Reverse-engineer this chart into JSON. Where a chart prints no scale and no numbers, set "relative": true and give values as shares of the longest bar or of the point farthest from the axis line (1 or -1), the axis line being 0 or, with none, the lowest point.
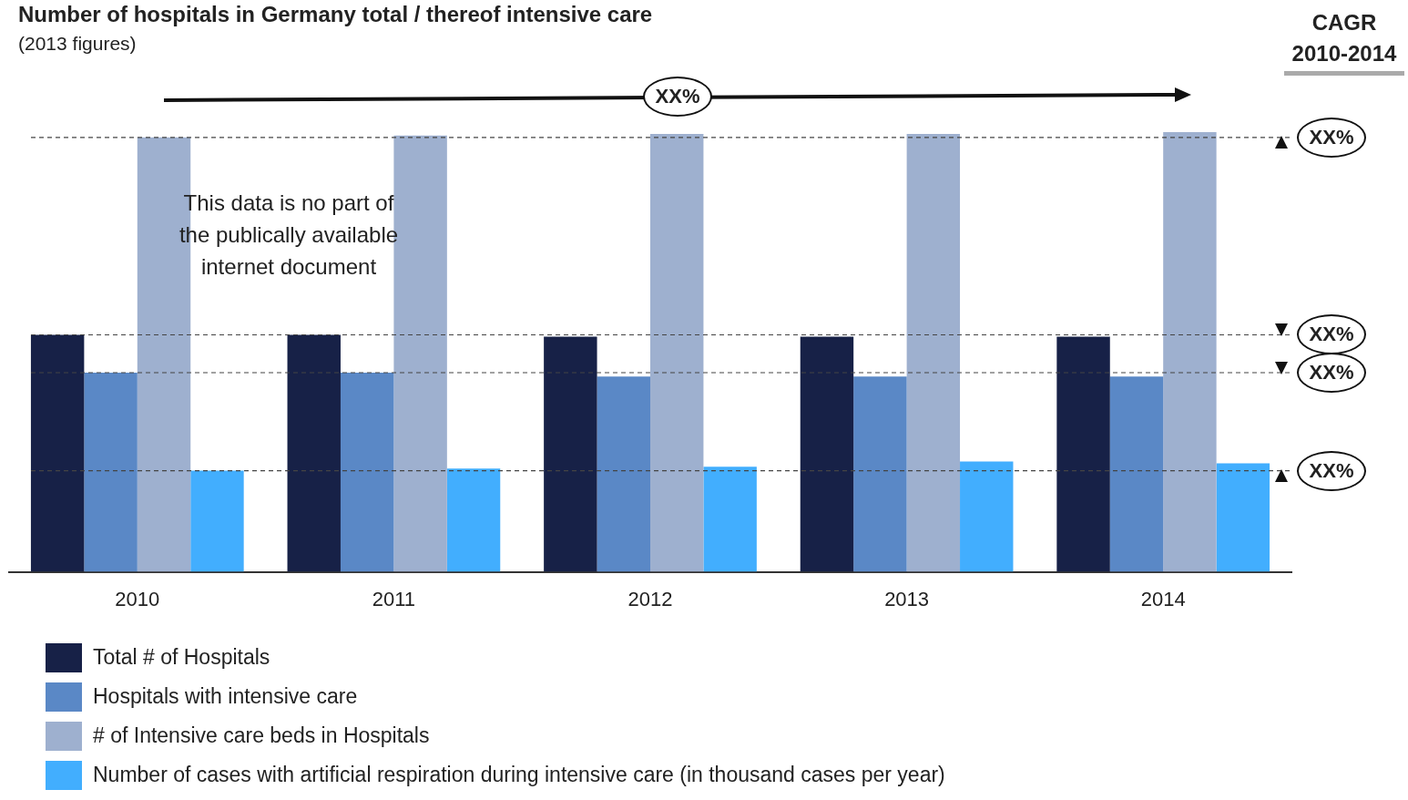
{
  "chart_data": {
    "type": "bar",
    "title": "Number of hospitals in Germany total / thereof intensive care",
    "subtitle": "(2013 figures)",
    "categories": [
      "2010",
      "2011",
      "2012",
      "2013",
      "2014"
    ],
    "relative": true,
    "series": [
      {
        "name": "Total # of Hospitals",
        "color": "#172147",
        "values": [
          0.539,
          0.539,
          0.535,
          0.535,
          0.535
        ]
      },
      {
        "name": "Hospitals with intensive care",
        "color": "#5a88c6",
        "values": [
          0.453,
          0.453,
          0.444,
          0.444,
          0.444
        ]
      },
      {
        "name": "# of Intensive care beds in Hospitals",
        "color": "#9eb0cf",
        "values": [
          0.988,
          0.992,
          0.996,
          0.996,
          1
        ]
      },
      {
        "name": "Number of cases with artificial respiration during intensive care (in thousand cases per year)",
        "color": "#42aefe",
        "values": [
          0.23,
          0.235,
          0.239,
          0.251,
          0.247
        ]
      }
    ],
    "ref_lines": [
      {
        "axis": "y",
        "value": 0.988,
        "label": "XX%",
        "line_style": "dashed"
      },
      {
        "axis": "y",
        "value": 0.539,
        "label": "XX%",
        "line_style": "dashed"
      },
      {
        "axis": "y",
        "value": 0.453,
        "label": "XX%",
        "line_style": "dashed"
      },
      {
        "axis": "y",
        "value": 0.23,
        "label": "XX%",
        "line_style": "dashed"
      }
    ],
    "annotations": [
      "CAGR 2010-2014",
      "XX%",
      "This data is no part of the publically available internet document"
    ],
    "legend": "bottom",
    "grid": false
  }
}
